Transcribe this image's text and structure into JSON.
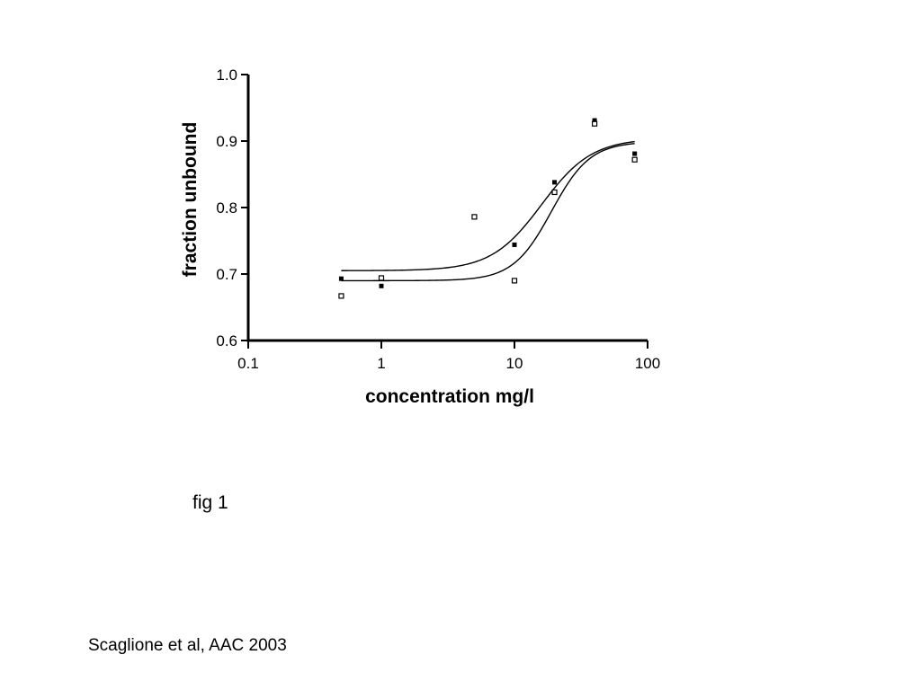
{
  "caption": "fig 1",
  "citation": "Scaglione et al, AAC 2003",
  "chart_data": {
    "type": "scatter",
    "title": "",
    "xlabel": "concentration mg/l",
    "ylabel": "fraction unbound",
    "x_scale": "log",
    "xlim": [
      0.1,
      100
    ],
    "ylim": [
      0.6,
      1.0
    ],
    "x_ticks": [
      "0.1",
      "1",
      "10",
      "100"
    ],
    "y_ticks": [
      "0.6",
      "0.7",
      "0.8",
      "0.9",
      "1.0"
    ],
    "grid": false,
    "series": [
      {
        "marker": "filled-square",
        "points": [
          {
            "x": 0.5,
            "y": 0.693
          },
          {
            "x": 1,
            "y": 0.682
          },
          {
            "x": 10,
            "y": 0.744
          },
          {
            "x": 20,
            "y": 0.838
          },
          {
            "x": 40,
            "y": 0.931
          },
          {
            "x": 80,
            "y": 0.881
          }
        ],
        "fit": {
          "bottom": 0.705,
          "top": 0.904,
          "ec50": 16,
          "hill": 2.3
        }
      },
      {
        "marker": "open-square",
        "points": [
          {
            "x": 0.5,
            "y": 0.667
          },
          {
            "x": 1,
            "y": 0.694
          },
          {
            "x": 5,
            "y": 0.786
          },
          {
            "x": 10,
            "y": 0.69
          },
          {
            "x": 20,
            "y": 0.823
          },
          {
            "x": 40,
            "y": 0.926
          },
          {
            "x": 80,
            "y": 0.872
          }
        ],
        "fit": {
          "bottom": 0.69,
          "top": 0.899,
          "ec50": 19,
          "hill": 3.0
        }
      }
    ]
  }
}
